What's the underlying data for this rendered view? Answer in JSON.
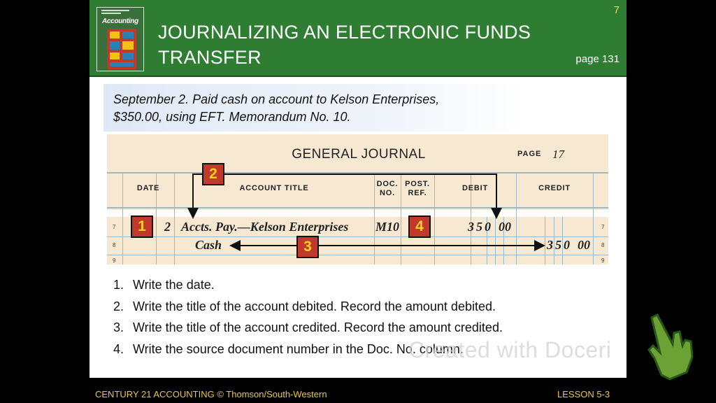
{
  "slide_number": "7",
  "header": {
    "title_line1": "JOURNALIZING AN ELECTRONIC FUNDS",
    "title_line2": "TRANSFER",
    "page_ref": "page 131",
    "cover_title": "Accounting"
  },
  "prompt": {
    "line1": "September 2. Paid cash on account to Kelson Enterprises,",
    "line2": "$350.00, using EFT. Memorandum No. 10."
  },
  "journal": {
    "title": "GENERAL JOURNAL",
    "page_label": "PAGE",
    "page_number": "17",
    "columns": {
      "date": "DATE",
      "account_title": "ACCOUNT TITLE",
      "doc_no_1": "DOC.",
      "doc_no_2": "NO.",
      "post_ref_1": "POST.",
      "post_ref_2": "REF.",
      "debit": "DEBIT",
      "credit": "CREDIT"
    },
    "line_numbers": [
      "7",
      "8",
      "9"
    ],
    "entry": {
      "day": "2",
      "debit_account": "Accts. Pay.—Kelson Enterprises",
      "doc_no": "M10",
      "debit_amount": "350",
      "debit_cents": "00",
      "credit_account": "Cash",
      "credit_amount": "350",
      "credit_cents": "00"
    },
    "badges": [
      "1",
      "2",
      "3",
      "4"
    ]
  },
  "steps": [
    {
      "num": "1.",
      "text": "Write the date."
    },
    {
      "num": "2.",
      "text": "Write the title of the account debited. Record the amount debited."
    },
    {
      "num": "3.",
      "text": "Write the title of the account credited. Record the amount credited."
    },
    {
      "num": "4.",
      "text": "Write the source document number in the Doc. No. column."
    }
  ],
  "watermark": "Created with Doceri",
  "footer": {
    "left": "CENTURY 21 ACCOUNTING © Thomson/South-Western",
    "right": "LESSON  5-3"
  },
  "colors": {
    "header_green": "#2e7d32",
    "badge_red": "#c0392b",
    "badge_text": "#ffd21f",
    "footer_text": "#e8c547",
    "journal_bg": "#f7e8d2"
  }
}
